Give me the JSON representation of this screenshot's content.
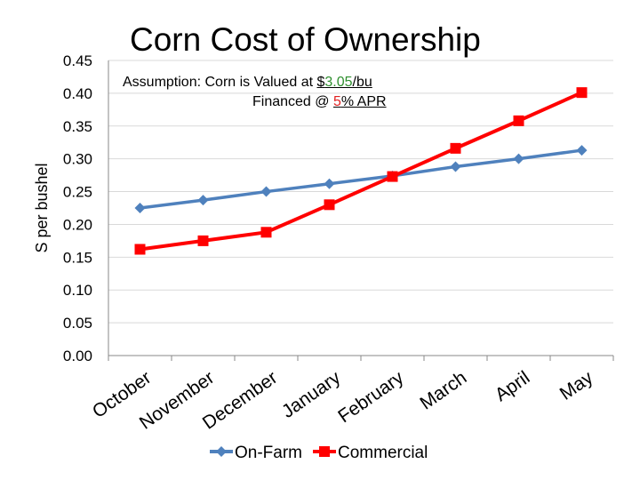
{
  "chart_data": {
    "type": "line",
    "title": "Corn Cost of Ownership",
    "ylabel": "S per bushel",
    "xlabel": "",
    "ylim": [
      0,
      0.45
    ],
    "y_ticks": [
      "0.00",
      "0.05",
      "0.10",
      "0.15",
      "0.20",
      "0.25",
      "0.30",
      "0.35",
      "0.40",
      "0.45"
    ],
    "categories": [
      "October",
      "November",
      "December",
      "January",
      "February",
      "March",
      "April",
      "May"
    ],
    "series": [
      {
        "name": "On-Farm",
        "color": "#4f81bd",
        "marker": "diamond",
        "values": [
          0.225,
          0.237,
          0.25,
          0.262,
          0.274,
          0.288,
          0.3,
          0.313
        ]
      },
      {
        "name": "Commercial",
        "color": "#ff0000",
        "marker": "square",
        "values": [
          0.162,
          0.175,
          0.188,
          0.23,
          0.273,
          0.316,
          0.358,
          0.401
        ]
      }
    ],
    "grid": true,
    "legend_position": "bottom",
    "annotation": {
      "line1_prefix": "Assumption: Corn is Valued at ",
      "price_prefix": "$",
      "price_value": "3.05",
      "price_unit": "/bu",
      "line2_prefix": "Financed @ ",
      "rate_value": "5",
      "rate_suffix": "% APR"
    }
  }
}
